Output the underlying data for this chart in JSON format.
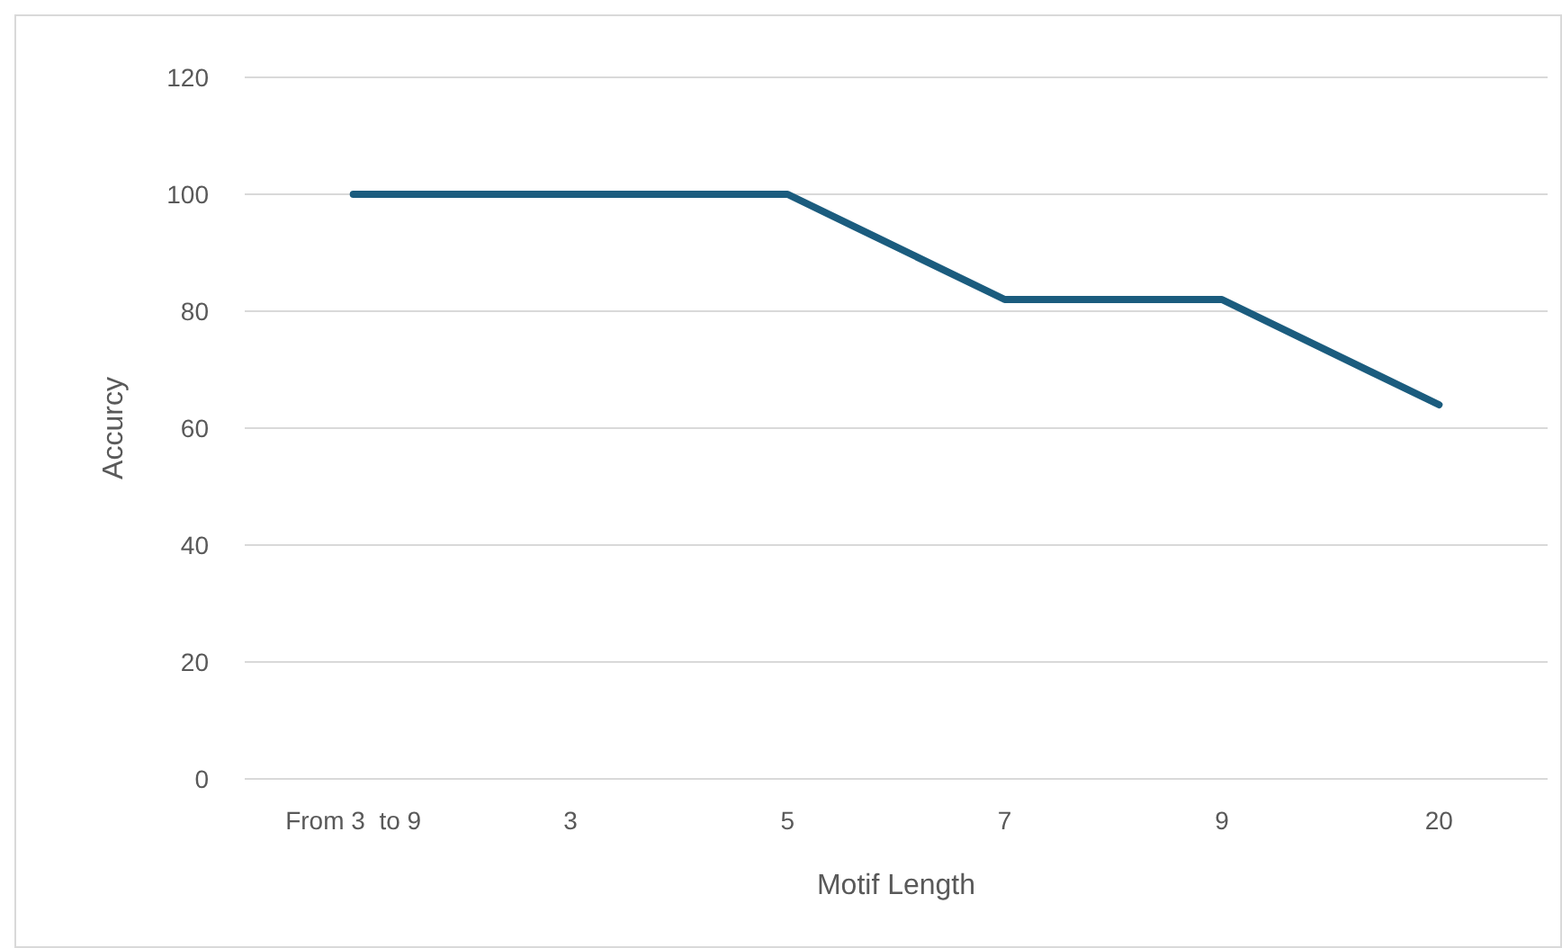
{
  "chart_data": {
    "type": "line",
    "xlabel": "Motif Length",
    "ylabel": "Accurcy",
    "categories": [
      "From 3  to 9",
      "3",
      "5",
      "7",
      "9",
      "20"
    ],
    "series": [
      {
        "color": "#1b5c7e",
        "values": [
          100,
          100,
          100,
          82,
          82,
          64
        ]
      }
    ],
    "ylim": [
      0,
      120
    ],
    "yticks": [
      0,
      20,
      40,
      60,
      80,
      100,
      120
    ],
    "grid": "y",
    "marker": "none",
    "line_style": "solid"
  }
}
